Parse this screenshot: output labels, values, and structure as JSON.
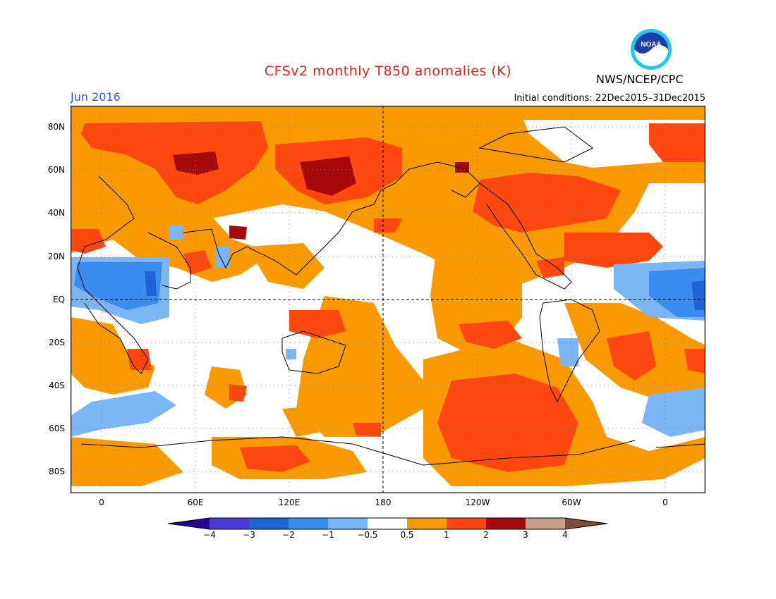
{
  "header": {
    "title": "CFSv2 monthly T850 anomalies (K)",
    "month": "Jun 2016",
    "initial_conditions": "Initial conditions: 22Dec2015–31Dec2015",
    "agency": "NWS/NCEP/CPC",
    "logo_text": "NOAA"
  },
  "map": {
    "lat_labels": [
      "80N",
      "60N",
      "40N",
      "20N",
      "EQ",
      "20S",
      "40S",
      "60S",
      "80S"
    ],
    "lon_labels": [
      "0",
      "60E",
      "120E",
      "180",
      "120W",
      "60W",
      "0"
    ]
  },
  "legend": {
    "bins": [
      {
        "color": "#23008f"
      },
      {
        "color": "#4c3ad8"
      },
      {
        "color": "#1f64d6"
      },
      {
        "color": "#3b8cf0"
      },
      {
        "color": "#7ab6f5"
      },
      {
        "color": "#ffffff"
      },
      {
        "color": "#fa9a00"
      },
      {
        "color": "#ff4710"
      },
      {
        "color": "#a60a0a"
      },
      {
        "color": "#c7a08b"
      },
      {
        "color": "#7b4b3b"
      }
    ],
    "labels": [
      "−4",
      "−3",
      "−2",
      "−1",
      "−0.5",
      "0.5",
      "1",
      "2",
      "3",
      "4"
    ]
  },
  "colors": {
    "orange": "#fa9a00",
    "red": "#ff4710",
    "darkred": "#a60a0a",
    "lightblue": "#7ab6f5",
    "blue": "#3b8cf0",
    "title": "#e02020",
    "month": "#2a5fd6"
  }
}
